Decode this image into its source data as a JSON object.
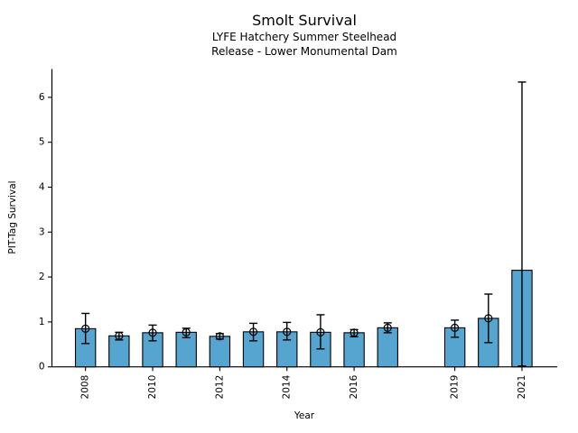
{
  "chart_data": {
    "type": "bar",
    "title": "Smolt Survival",
    "subtitle_line1": "LYFE Hatchery Summer Steelhead",
    "subtitle_line2": "Release - Lower Monumental Dam",
    "xlabel": "Year",
    "ylabel": "PIT-Tag Survival",
    "bar_color": "#56a4d0",
    "bar_edge_color": "#000000",
    "errorbar_color": "#000000",
    "marker_style": "open-circle",
    "grid": false,
    "legend": "none",
    "xlim": [
      2007,
      2022.05
    ],
    "ylim": [
      0,
      6.63
    ],
    "yticks": [
      0,
      1,
      2,
      3,
      4,
      5,
      6
    ],
    "xticks": [
      2008,
      2010,
      2012,
      2014,
      2016,
      2019,
      2021
    ],
    "bar_width_years": 0.6,
    "points": [
      {
        "year": 2008,
        "value": 0.85,
        "ci_low": 0.52,
        "ci_high": 1.19,
        "marker": true
      },
      {
        "year": 2009,
        "value": 0.69,
        "ci_low": 0.6,
        "ci_high": 0.77,
        "marker": true
      },
      {
        "year": 2010,
        "value": 0.76,
        "ci_low": 0.58,
        "ci_high": 0.93,
        "marker": true
      },
      {
        "year": 2011,
        "value": 0.77,
        "ci_low": 0.65,
        "ci_high": 0.86,
        "marker": true
      },
      {
        "year": 2012,
        "value": 0.68,
        "ci_low": 0.62,
        "ci_high": 0.74,
        "marker": true
      },
      {
        "year": 2013,
        "value": 0.78,
        "ci_low": 0.58,
        "ci_high": 0.97,
        "marker": true
      },
      {
        "year": 2014,
        "value": 0.78,
        "ci_low": 0.6,
        "ci_high": 0.99,
        "marker": true
      },
      {
        "year": 2015,
        "value": 0.77,
        "ci_low": 0.4,
        "ci_high": 1.16,
        "marker": true
      },
      {
        "year": 2016,
        "value": 0.76,
        "ci_low": 0.67,
        "ci_high": 0.83,
        "marker": true
      },
      {
        "year": 2017,
        "value": 0.87,
        "ci_low": 0.76,
        "ci_high": 0.98,
        "marker": true
      },
      {
        "year": 2019,
        "value": 0.87,
        "ci_low": 0.66,
        "ci_high": 1.04,
        "marker": true
      },
      {
        "year": 2020,
        "value": 1.08,
        "ci_low": 0.54,
        "ci_high": 1.62,
        "marker": true
      },
      {
        "year": 2021,
        "value": 2.15,
        "ci_low": 0.02,
        "ci_high": 6.34,
        "marker": false
      }
    ]
  }
}
